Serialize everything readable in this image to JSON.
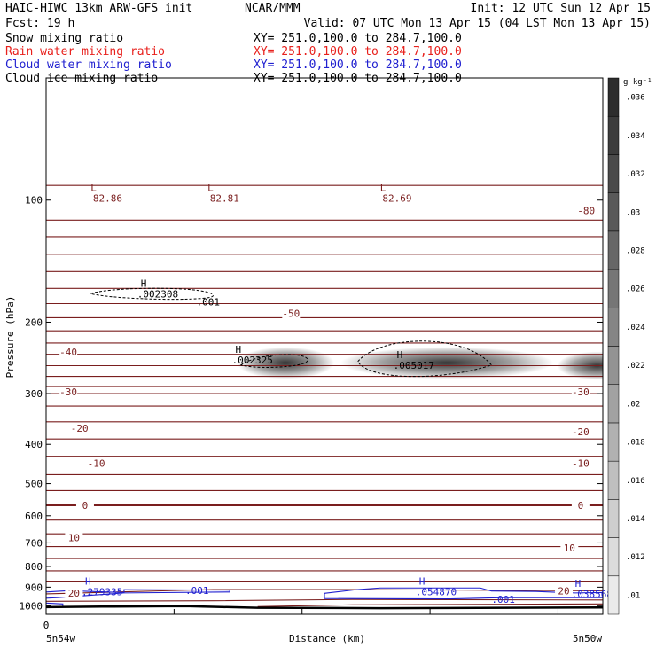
{
  "header": {
    "title_left": "HAIC-HIWC 13km ARW-GFS init",
    "org": "NCAR/MMM",
    "init": "Init: 12 UTC Sun 12 Apr 15",
    "fcst": "Fcst:    19 h",
    "valid": "Valid: 07 UTC Mon 13 Apr 15 (04 LST Mon 13 Apr 15)"
  },
  "fields": [
    {
      "name": "Snow mixing ratio",
      "xy": "XY= 251.0,100.0 to 284.7,100.0",
      "color": "#000000"
    },
    {
      "name": "Rain water mixing ratio",
      "xy": "XY= 251.0,100.0 to 284.7,100.0",
      "color": "#e8201c"
    },
    {
      "name": "Cloud water mixing ratio",
      "xy": "XY= 251.0,100.0 to 284.7,100.0",
      "color": "#2020d0"
    },
    {
      "name": "Cloud ice mixing ratio",
      "xy": "XY= 251.0,100.0 to 284.7,100.0",
      "color": "#000000"
    }
  ],
  "colors": {
    "temperature": "#7a1e1e",
    "cloud_water": "#2020d0",
    "cloud_ice": "#000000",
    "terrain": "#000000",
    "shading": "#2a2a2a"
  },
  "chart_data": {
    "type": "cross-section",
    "ylabel": "Pressure (hPa)",
    "xlabel": "Distance (km)",
    "ylim": [
      1050,
      50
    ],
    "yscale": "log",
    "yticks": [
      100,
      200,
      300,
      400,
      500,
      600,
      700,
      800,
      900,
      1000
    ],
    "xticks": [
      "0"
    ],
    "x_start_label": "5n54w",
    "x_end_label": "5n50w",
    "colorbar": {
      "unit": "g kg⁻¹",
      "ticks": [
        ".01",
        ".012",
        ".014",
        ".016",
        ".018",
        ".02",
        ".022",
        ".024",
        ".026",
        ".028",
        ".03",
        ".032",
        ".034",
        ".036"
      ]
    },
    "temperature_labels": [
      {
        "text": "-80",
        "p": 106,
        "x": 0.97
      },
      {
        "text": "-50",
        "p": 190,
        "x": 0.44
      },
      {
        "text": "-40",
        "p": 237,
        "x": 0.04
      },
      {
        "text": "-30",
        "p": 297,
        "x": 0.04
      },
      {
        "text": "-30",
        "p": 297,
        "x": 0.96
      },
      {
        "text": "-20",
        "p": 365,
        "x": 0.06
      },
      {
        "text": "-20",
        "p": 372,
        "x": 0.96
      },
      {
        "text": "-10",
        "p": 445,
        "x": 0.09
      },
      {
        "text": "-10",
        "p": 445,
        "x": 0.96
      },
      {
        "text": "0",
        "p": 565,
        "x": 0.07
      },
      {
        "text": "0",
        "p": 565,
        "x": 0.96
      },
      {
        "text": "10",
        "p": 680,
        "x": 0.05
      },
      {
        "text": "10",
        "p": 720,
        "x": 0.94
      },
      {
        "text": "20",
        "p": 930,
        "x": 0.05
      },
      {
        "text": "20",
        "p": 918,
        "x": 0.93
      }
    ],
    "extrema": [
      {
        "mark": "L",
        "value": "-82.86",
        "p": 100,
        "x": 0.08
      },
      {
        "mark": "L",
        "value": "-82.81",
        "p": 100,
        "x": 0.29
      },
      {
        "mark": "L",
        "value": "-82.69",
        "p": 100,
        "x": 0.6
      },
      {
        "mark": "H",
        "value": ".002308",
        "p": 172,
        "x": 0.17
      },
      {
        "mark": "H",
        "value": ".002325",
        "p": 250,
        "x": 0.34
      },
      {
        "mark": "H",
        "value": ".005017",
        "p": 258,
        "x": 0.63
      },
      {
        "mark": "H",
        "value": ".279335",
        "p": 932,
        "x": 0.07
      },
      {
        "mark": "H",
        "value": ".054870",
        "p": 932,
        "x": 0.67
      },
      {
        "mark": "H",
        "value": ".038568",
        "p": 945,
        "x": 0.95
      }
    ],
    "contour_labels": [
      {
        "text": ".001",
        "p": 178,
        "x": 0.27,
        "field": "cloud_ice"
      },
      {
        "text": ".001",
        "p": 917,
        "x": 0.25,
        "field": "cloud_water"
      },
      {
        "text": ".001",
        "p": 963,
        "x": 0.8,
        "field": "cloud_water"
      }
    ]
  }
}
